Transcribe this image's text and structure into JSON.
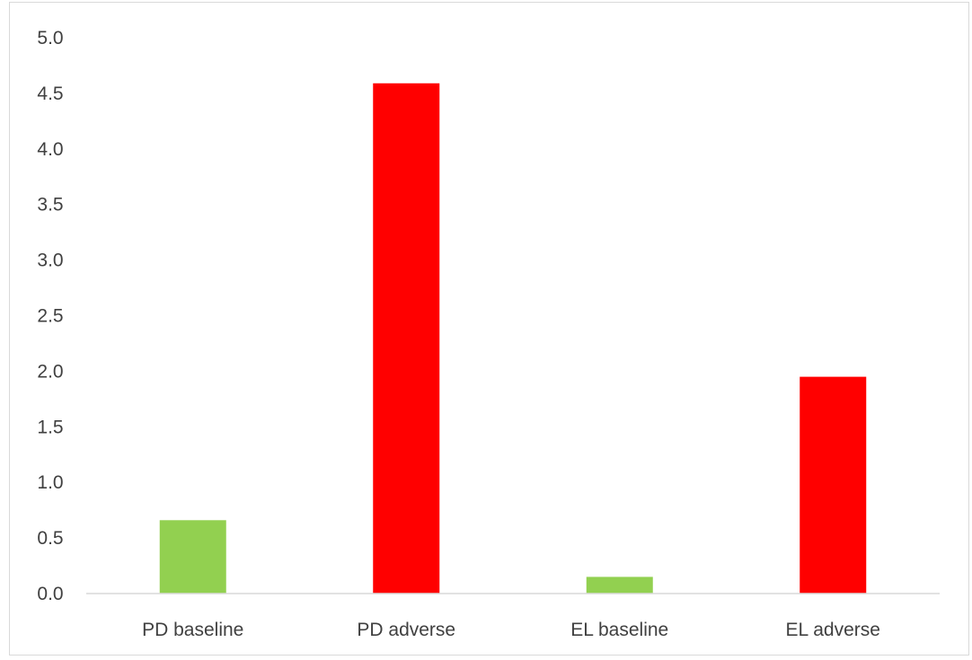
{
  "chart_data": {
    "type": "bar",
    "title": "",
    "xlabel": "",
    "ylabel": "",
    "categories": [
      "PD baseline",
      "PD adverse",
      "EL baseline",
      "EL adverse"
    ],
    "values": [
      0.66,
      4.59,
      0.15,
      1.95
    ],
    "bar_colors": [
      "#92d050",
      "#ff0000",
      "#92d050",
      "#ff0000"
    ],
    "ylim": [
      0,
      5
    ],
    "y_ticks": [
      "0.0",
      "0.5",
      "1.0",
      "1.5",
      "2.0",
      "2.5",
      "3.0",
      "3.5",
      "4.0",
      "4.5",
      "5.0"
    ],
    "grid": false,
    "legend": "none"
  }
}
